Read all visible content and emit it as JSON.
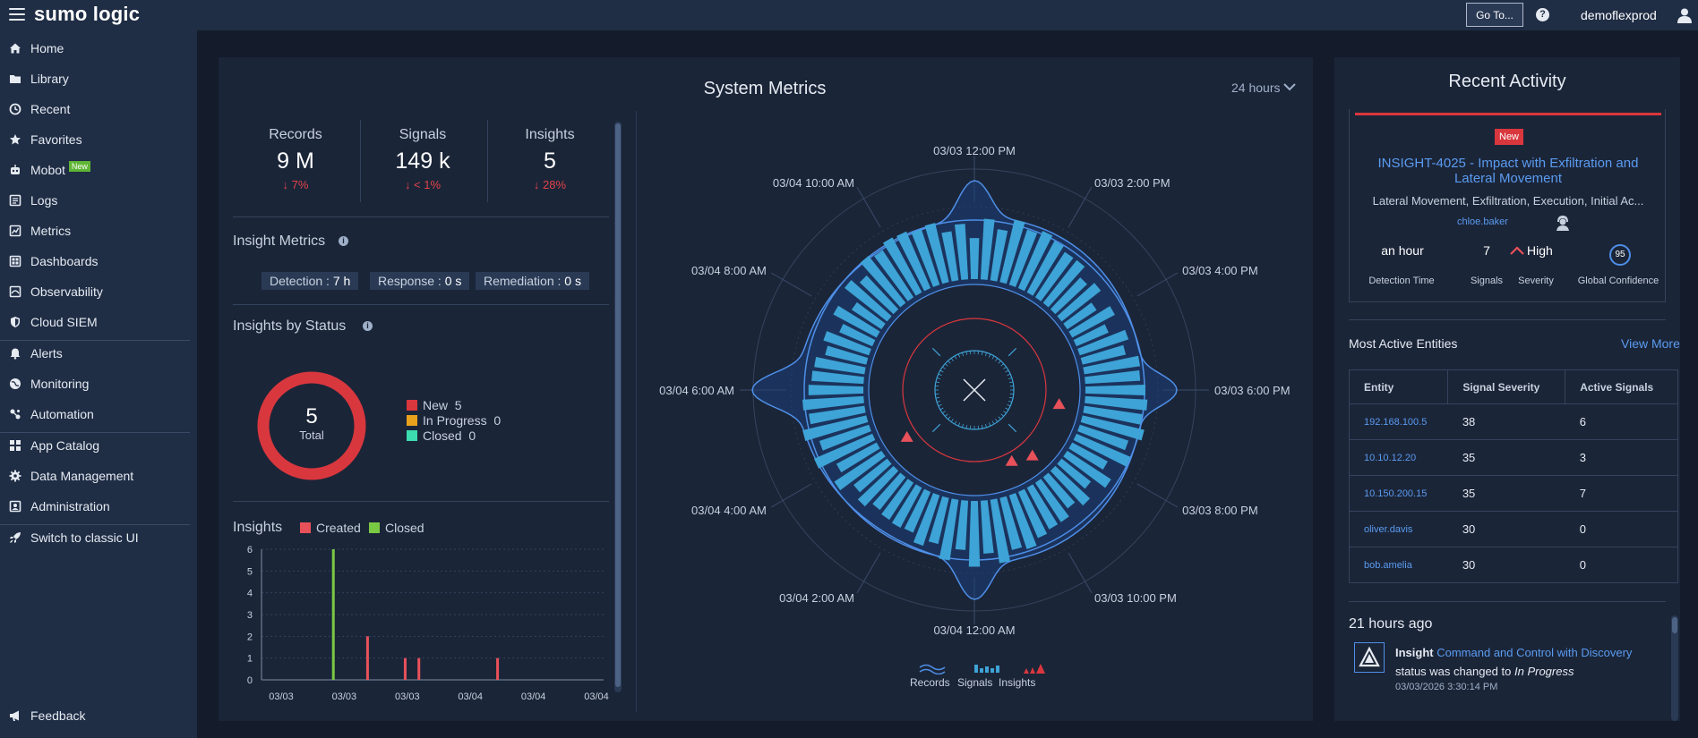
{
  "topbar": {
    "logo": "sumo logic",
    "goto_label": "Go To...",
    "help_label": "?",
    "username": "demoflexprod"
  },
  "sidebar": {
    "items": [
      {
        "label": "Home",
        "icon": "home-icon"
      },
      {
        "label": "Library",
        "icon": "folder-icon"
      },
      {
        "label": "Recent",
        "icon": "clock-icon"
      },
      {
        "label": "Favorites",
        "icon": "star-icon"
      },
      {
        "label": "Mobot",
        "icon": "robot-icon",
        "badge": "New"
      },
      {
        "label": "Logs",
        "icon": "logs-icon"
      },
      {
        "label": "Metrics",
        "icon": "metrics-icon"
      },
      {
        "label": "Dashboards",
        "icon": "dashboard-icon"
      },
      {
        "label": "Observability",
        "icon": "observability-icon"
      },
      {
        "label": "Cloud SIEM",
        "icon": "shield-icon"
      },
      {
        "label": "Alerts",
        "icon": "bell-icon"
      },
      {
        "label": "Monitoring",
        "icon": "globe-icon"
      },
      {
        "label": "Automation",
        "icon": "automation-icon"
      },
      {
        "label": "App Catalog",
        "icon": "grid-icon"
      },
      {
        "label": "Data Management",
        "icon": "gear-icon"
      },
      {
        "label": "Administration",
        "icon": "admin-icon"
      },
      {
        "label": "Switch to classic UI",
        "icon": "rocket-icon"
      }
    ],
    "feedback": "Feedback"
  },
  "metrics": {
    "title": "System Metrics",
    "range": "24 hours",
    "records": {
      "label": "Records",
      "value": "9 M",
      "delta": "↓ 7%"
    },
    "signals": {
      "label": "Signals",
      "value": "149 k",
      "delta": "↓ < 1%"
    },
    "insights": {
      "label": "Insights",
      "value": "5",
      "delta": "↓ 28%"
    },
    "insight_metrics_title": "Insight Metrics",
    "detection": {
      "label": "Detection :",
      "value": "7 h"
    },
    "response": {
      "label": "Response :",
      "value": "0 s"
    },
    "remediation": {
      "label": "Remediation :",
      "value": "0 s"
    },
    "status_title": "Insights by Status",
    "status_total": "5",
    "status_total_label": "Total",
    "status_legend": [
      {
        "label": "New",
        "count": "5",
        "color": "#d9373e"
      },
      {
        "label": "In Progress",
        "count": "0",
        "color": "#e8a21c"
      },
      {
        "label": "Closed",
        "count": "0",
        "color": "#3ddbb0"
      }
    ],
    "insights_chart_title": "Insights",
    "insights_legend_created": "Created",
    "insights_legend_closed": "Closed"
  },
  "radial": {
    "time_labels": [
      "03/03 12:00 PM",
      "03/03 2:00 PM",
      "03/03 4:00 PM",
      "03/03 6:00 PM",
      "03/03 8:00 PM",
      "03/03 10:00 PM",
      "03/04 12:00 AM",
      "03/04 2:00 AM",
      "03/04 4:00 AM",
      "03/04 6:00 AM",
      "03/04 8:00 AM",
      "03/04 10:00 AM"
    ],
    "legend": [
      "Records",
      "Signals",
      "Insights"
    ]
  },
  "chart_data": {
    "type": "bar",
    "title": "Insights",
    "y_ticks": [
      "6",
      "5",
      "4",
      "3",
      "2",
      "1",
      "0"
    ],
    "ylim": [
      0,
      6
    ],
    "x_ticks": [
      "03/03",
      "03/03",
      "03/03",
      "03/04",
      "03/04",
      "03/04"
    ],
    "series": [
      {
        "name": "Closed",
        "color": "#7ac943",
        "points": [
          {
            "x": 0.21,
            "value": 6
          }
        ]
      },
      {
        "name": "Created",
        "color": "#e8515a",
        "points": [
          {
            "x": 0.31,
            "value": 2
          },
          {
            "x": 0.42,
            "value": 1
          },
          {
            "x": 0.46,
            "value": 1
          },
          {
            "x": 0.69,
            "value": 1
          }
        ]
      }
    ]
  },
  "activity": {
    "title": "Recent Activity",
    "badge": "New",
    "insight_title": "INSIGHT-4025 - Impact with Exfiltration and Lateral Movement",
    "tactics": "Lateral Movement, Exfiltration, Execution, Initial Ac...",
    "assignee": "chloe.baker",
    "detection_time": "an hour",
    "signals": "7",
    "severity": "High",
    "confidence": "95",
    "label_detection": "Detection Time",
    "label_signals": "Signals",
    "label_severity": "Severity",
    "label_confidence": "Global Confidence",
    "entities_title": "Most Active Entities",
    "view_more": "View More",
    "entity_headers": [
      "Entity",
      "Signal Severity",
      "Active Signals"
    ],
    "entities": [
      {
        "entity": "192.168.100.5",
        "severity": "38",
        "signals": "6"
      },
      {
        "entity": "10.10.12.20",
        "severity": "35",
        "signals": "3"
      },
      {
        "entity": "10.150.200.15",
        "severity": "35",
        "signals": "7"
      },
      {
        "entity": "oliver.davis",
        "severity": "30",
        "signals": "0"
      },
      {
        "entity": "bob.amelia",
        "severity": "30",
        "signals": "0"
      }
    ],
    "feed_time": "21 hours ago",
    "feed_type": "Insight",
    "feed_link": "Command and Control with Discovery",
    "feed_text": "status was changed to",
    "feed_status": "In Progress",
    "feed_date": "03/03/2026 3:30:14 PM"
  }
}
